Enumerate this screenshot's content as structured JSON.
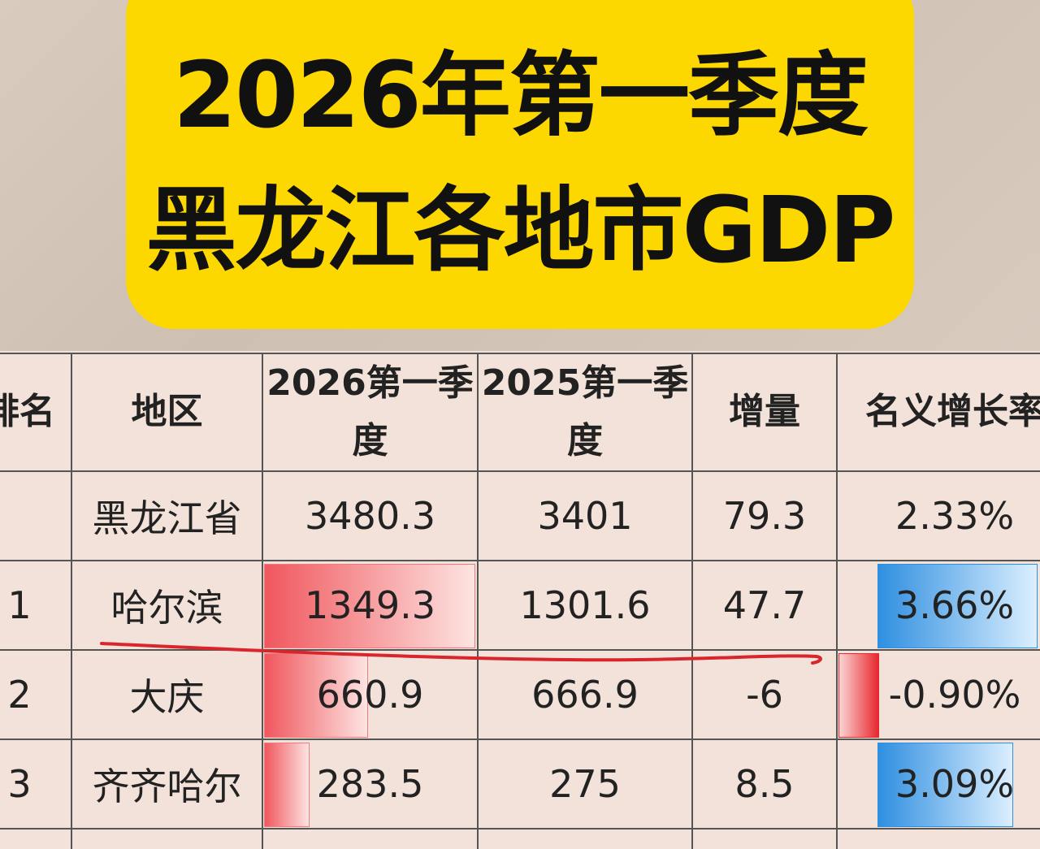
{
  "header": {
    "title": [
      "2026年第一季度",
      "黑龙江各地市GDP"
    ]
  },
  "table": {
    "columns": [
      "排名",
      "地区",
      "2026第一季度",
      "2025第一季度",
      "增量",
      "名义增长率"
    ],
    "rows": [
      [
        null,
        "黑龙江省",
        "3480.3",
        "3401",
        "79.3",
        "2.33%"
      ],
      [
        "1",
        "哈尔滨",
        "1349.3",
        "1301.6",
        "47.7",
        "3.66%"
      ],
      [
        "2",
        "大庆",
        "660.9",
        "666.9",
        "-6",
        "-0.90%"
      ],
      [
        "3",
        "齐齐哈尔",
        "283.5",
        "275",
        "8.5",
        "3.09%"
      ]
    ]
  }
}
